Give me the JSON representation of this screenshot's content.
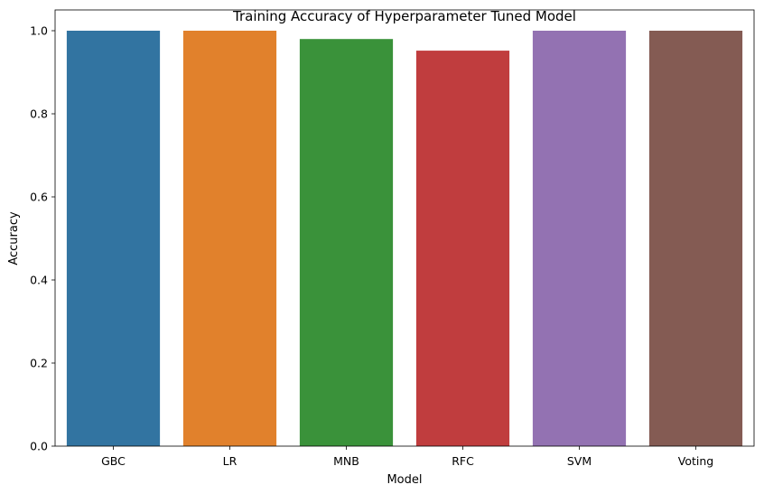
{
  "chart_data": {
    "type": "bar",
    "title": "Training Accuracy of Hyperparameter Tuned Model",
    "xlabel": "Model",
    "ylabel": "Accuracy",
    "categories": [
      "GBC",
      "LR",
      "MNB",
      "RFC",
      "SVM",
      "Voting"
    ],
    "values": [
      1.0,
      1.0,
      0.98,
      0.952,
      1.0,
      1.0
    ],
    "colors": [
      "#3274a1",
      "#e1812c",
      "#3a923a",
      "#c03d3e",
      "#9372b2",
      "#845b53"
    ],
    "ylim": [
      0,
      1.05
    ],
    "yticks": [
      0.0,
      0.2,
      0.4,
      0.6,
      0.8,
      1.0
    ],
    "ytick_labels": [
      "0.0",
      "0.2",
      "0.4",
      "0.6",
      "0.8",
      "1.0"
    ],
    "grid": false,
    "legend": "none"
  }
}
